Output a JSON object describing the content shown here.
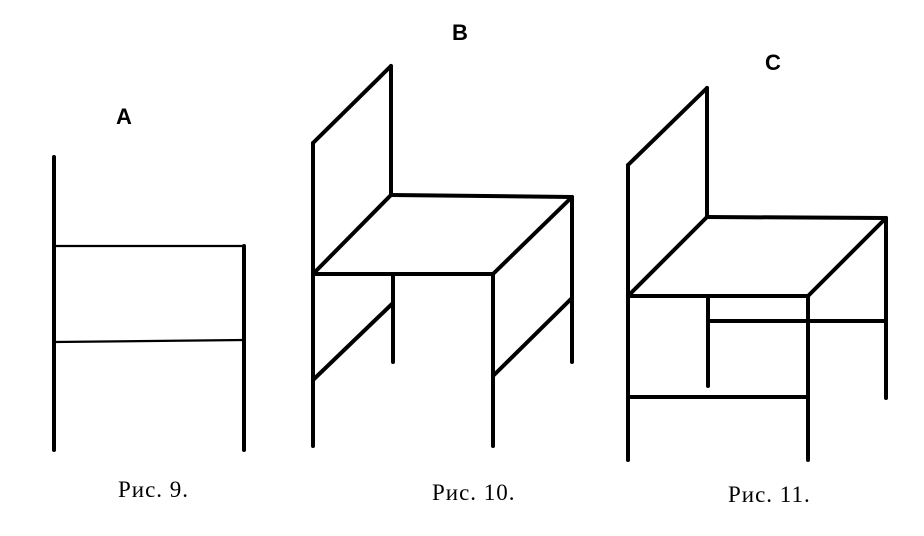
{
  "figures": [
    {
      "letter": "A",
      "caption": "Рис. 9."
    },
    {
      "letter": "B",
      "caption": "Рис. 10."
    },
    {
      "letter": "C",
      "caption": "Рис. 11."
    }
  ]
}
